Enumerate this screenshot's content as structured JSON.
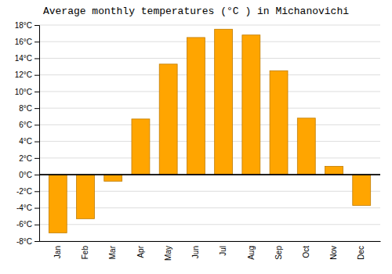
{
  "chart_data": {
    "type": "bar",
    "title": "Average monthly temperatures (°C ) in Michanovichi",
    "categories": [
      "Jan",
      "Feb",
      "Mar",
      "Apr",
      "May",
      "Jun",
      "Jul",
      "Aug",
      "Sep",
      "Oct",
      "Nov",
      "Dec"
    ],
    "values": [
      -7.0,
      -5.3,
      -0.8,
      6.7,
      13.3,
      16.5,
      17.5,
      16.8,
      12.5,
      6.8,
      1.0,
      -3.7
    ],
    "color": "#FFA500",
    "ylim": [
      -8,
      18
    ],
    "yticks": [
      {
        "value": -8,
        "label": "-8°C"
      },
      {
        "value": -6,
        "label": "-6°C"
      },
      {
        "value": -4,
        "label": "-4°C"
      },
      {
        "value": -2,
        "label": "-2°C"
      },
      {
        "value": 0,
        "label": "0°C"
      },
      {
        "value": 2,
        "label": "2°C"
      },
      {
        "value": 4,
        "label": "4°C"
      },
      {
        "value": 6,
        "label": "6°C"
      },
      {
        "value": 8,
        "label": "8°C"
      },
      {
        "value": 10,
        "label": "10°C"
      },
      {
        "value": 12,
        "label": "12°C"
      },
      {
        "value": 14,
        "label": "14°C"
      },
      {
        "value": 16,
        "label": "16°C"
      },
      {
        "value": 18,
        "label": "18°C"
      }
    ],
    "grid": true
  }
}
